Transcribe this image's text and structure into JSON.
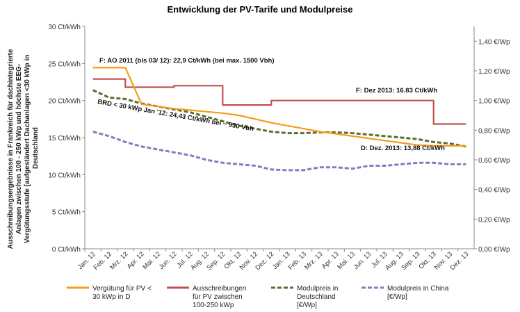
{
  "chart_data": {
    "type": "line",
    "title": "Entwicklung der PV-Tarife und Modulpreise",
    "ylabel_lines": [
      "Ausschreibungsergebnisse in Frankreich für dachintegrierte",
      "Anlagen zwischen 100 - 250 kWp und höchste EEG-",
      "Vergütungsstufe [aufgeständert Dachanlagen <30 kWp in",
      "Deutschland"
    ],
    "ylim": [
      0,
      30
    ],
    "yticks": [
      "0 Ct/kWh",
      "5 Ct/kWh",
      "10 Ct/kWh",
      "15 Ct/kWh",
      "20 Ct/kWh",
      "25 Ct/kWh",
      "30 Ct/kWh"
    ],
    "y2lim": [
      0,
      1.5
    ],
    "y2ticks": [
      "0,00 €/Wp",
      "0,20 €/Wp",
      "0,40 €/Wp",
      "0,60 €/Wp",
      "0,80 €/Wp",
      "1,00 €/Wp",
      "1,20 €/Wp",
      "1,40 €/Wp"
    ],
    "categories": [
      "Jan. 12",
      "Feb. 12",
      "Mrz. 12",
      "Apr. 12",
      "Mai. 12",
      "Jun. 12",
      "Jul. 12",
      "Aug. 12",
      "Sep. 12",
      "Okt. 12",
      "Nov. 12",
      "Dez. 12",
      "Jan. 13",
      "Feb. 13",
      "Mrz. 13",
      "Apr. 13",
      "Mai. 13",
      "Jun. 13",
      "Jul. 13",
      "Aug. 13",
      "Sep. 13",
      "Okt. 13",
      "Nov. 13",
      "Dez. 13"
    ],
    "series": [
      {
        "name_lines": [
          "Vergütung für PV <",
          "30 kWp in D"
        ],
        "axis": "left",
        "color": "#f59c1a",
        "style": "solid",
        "values": [
          24.43,
          24.43,
          24.43,
          19.5,
          19.2,
          18.9,
          18.7,
          18.5,
          18.3,
          18.0,
          17.5,
          17.0,
          16.6,
          16.2,
          15.8,
          15.5,
          15.2,
          14.9,
          14.6,
          14.3,
          14.0,
          13.9,
          13.88,
          13.88
        ]
      },
      {
        "name_lines": [
          "Ausschreibungen",
          "für PV zwischen",
          "100-250 kWp"
        ],
        "axis": "left",
        "color": "#c0504d",
        "style": "solid",
        "values": [
          22.9,
          22.9,
          21.8,
          21.8,
          21.8,
          22.0,
          22.0,
          22.0,
          19.4,
          19.4,
          19.4,
          20.0,
          20.0,
          20.0,
          20.0,
          20.0,
          20.0,
          20.0,
          20.0,
          20.0,
          20.0,
          16.83,
          16.83,
          16.83
        ]
      },
      {
        "name_lines": [
          "Modulpreis in",
          "Deutschland",
          "[€/Wp]"
        ],
        "axis": "right",
        "color": "#5a6e2c",
        "style": "dashed",
        "values": [
          1.07,
          1.02,
          1.01,
          0.98,
          0.96,
          0.94,
          0.92,
          0.89,
          0.86,
          0.83,
          0.81,
          0.79,
          0.78,
          0.78,
          0.785,
          0.785,
          0.78,
          0.77,
          0.76,
          0.75,
          0.74,
          0.72,
          0.71,
          0.69
        ]
      },
      {
        "name_lines": [
          "Modulpreis in China",
          "[€/Wp]"
        ],
        "axis": "right",
        "color": "#8878c0",
        "style": "dashed",
        "values": [
          0.79,
          0.76,
          0.72,
          0.69,
          0.67,
          0.65,
          0.63,
          0.6,
          0.58,
          0.57,
          0.56,
          0.535,
          0.53,
          0.53,
          0.55,
          0.55,
          0.54,
          0.56,
          0.56,
          0.57,
          0.58,
          0.58,
          0.57,
          0.57
        ]
      }
    ],
    "annotations": [
      "F: AO 2011 (bis 03/ 12): 22,9 Ct/kWh (bei max. 1500 Vbh)",
      "BRD < 30 kWp Jan '12: 24,43 Ct/kWh bei ~ 930 Vbh",
      "F: Dez 2013: 16.83 Ct/kWh",
      "D: Dez. 2013: 13,88 Ct/kWh"
    ],
    "grid": false,
    "legend_position": "bottom"
  }
}
